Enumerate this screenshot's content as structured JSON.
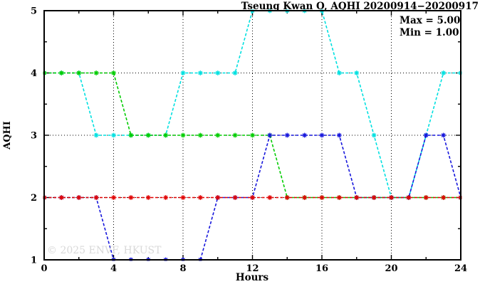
{
  "title": "Tseung Kwan O, AQHI 20200914−20200917",
  "annotation": {
    "max_label": "Max = 5.00",
    "min_label": "Min = 1.00"
  },
  "watermark": "© 2025 ENVF, HKUST",
  "colors": {
    "frame": "#000000",
    "grid": "#000000",
    "background": "#ffffff",
    "watermark_text": "#d9d9d9"
  },
  "chart_data": {
    "type": "line",
    "title": "Tseung Kwan O, AQHI 20200914−20200917",
    "xlabel": "Hours",
    "ylabel": "AQHI",
    "xlim": [
      0,
      24
    ],
    "ylim": [
      1,
      5
    ],
    "stat_max": 5.0,
    "stat_min": 1.0,
    "grid": "dotted",
    "legend_position": "none",
    "x_major_ticks": [
      0,
      4,
      8,
      12,
      16,
      20,
      24
    ],
    "x_tick_labels": [
      "0",
      "4",
      "8",
      "12",
      "16",
      "20",
      "24"
    ],
    "x_minor_ticks": [
      2,
      6,
      10,
      14,
      18,
      22
    ],
    "y_major_ticks": [
      1,
      2,
      3,
      4,
      5
    ],
    "y_tick_labels": [
      "1",
      "2",
      "3",
      "4",
      "5"
    ],
    "y_minor_ticks": [
      1.5,
      2.5,
      3.5,
      4.5
    ],
    "x_gridlines": [
      4,
      8,
      12,
      16,
      20
    ],
    "y_gridlines": [
      2,
      3,
      4
    ],
    "x": [
      0,
      1,
      2,
      3,
      4,
      5,
      6,
      7,
      8,
      9,
      10,
      11,
      12,
      13,
      14,
      15,
      16,
      17,
      18,
      19,
      20,
      21,
      22,
      23,
      24
    ],
    "series": [
      {
        "name": "blue",
        "color": "#1616dc",
        "values": [
          2,
          2,
          2,
          2,
          1,
          1,
          1,
          1,
          1,
          1,
          2,
          2,
          2,
          3,
          3,
          3,
          3,
          3,
          2,
          2,
          2,
          2,
          3,
          3,
          2
        ]
      },
      {
        "name": "green",
        "color": "#00cc00",
        "values": [
          4,
          4,
          4,
          4,
          4,
          3,
          3,
          3,
          3,
          3,
          3,
          3,
          3,
          3,
          2,
          2,
          2,
          2,
          2,
          2,
          2,
          2,
          2,
          2,
          2
        ]
      },
      {
        "name": "cyan",
        "color": "#00e0e0",
        "values": [
          4,
          4,
          4,
          3,
          3,
          3,
          3,
          3,
          4,
          4,
          4,
          4,
          5,
          5,
          5,
          5,
          5,
          4,
          4,
          3,
          2,
          2,
          3,
          4,
          4
        ]
      },
      {
        "name": "red",
        "color": "#e00000",
        "values": [
          2,
          2,
          2,
          2,
          2,
          2,
          2,
          2,
          2,
          2,
          2,
          2,
          2,
          2,
          2,
          2,
          2,
          2,
          2,
          2,
          2,
          2,
          2,
          2,
          2
        ]
      }
    ]
  }
}
